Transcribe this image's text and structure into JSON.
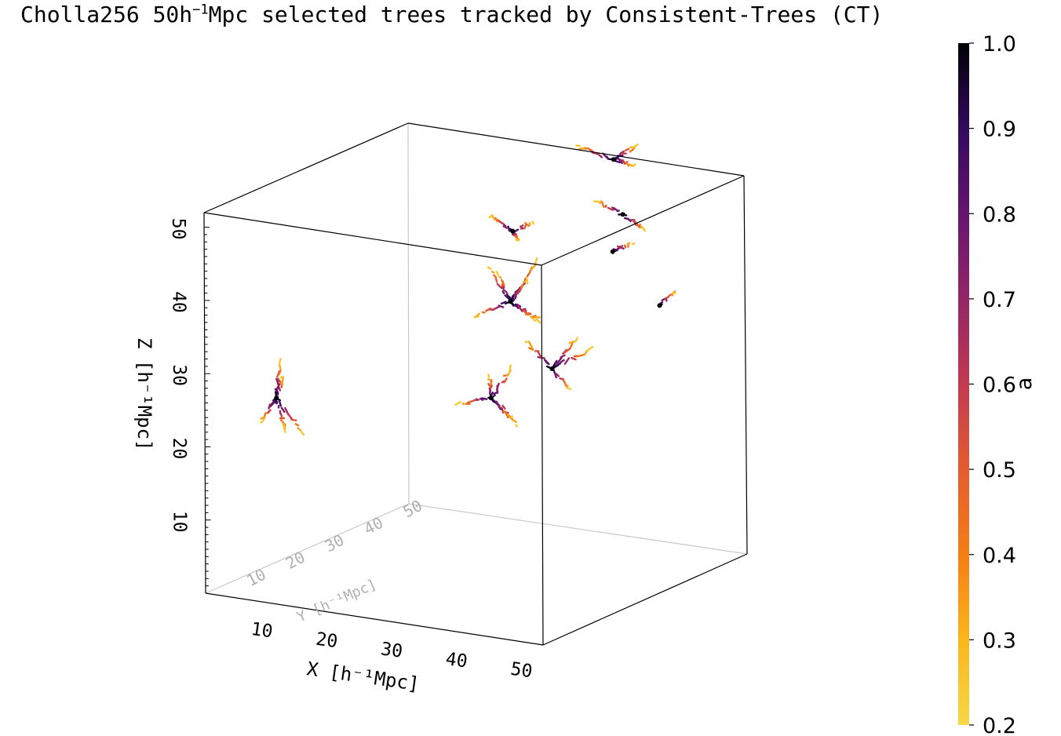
{
  "chart_data": {
    "type": "scatter",
    "projection": "3d",
    "title_parts": {
      "before": "Cholla256 50h",
      "sup": "−1",
      "after": "Mpc selected trees tracked by Consistent-Trees (CT)"
    },
    "axes": {
      "x": {
        "label": "X [h⁻¹Mpc]",
        "range": [
          0,
          52
        ],
        "ticks": [
          "10",
          "20",
          "30",
          "40",
          "50"
        ]
      },
      "y": {
        "label": "Y [h⁻¹Mpc]",
        "range": [
          0,
          52
        ],
        "ticks": [
          "10",
          "20",
          "30",
          "40",
          "50"
        ]
      },
      "z": {
        "label": "Z [h⁻¹Mpc]",
        "range": [
          0,
          52
        ],
        "ticks": [
          "10",
          "20",
          "30",
          "40",
          "50"
        ]
      }
    },
    "colorbar": {
      "label": "a",
      "range": [
        0.2,
        1.0
      ],
      "ticks": [
        "0.2",
        "0.3",
        "0.4",
        "0.5",
        "0.6",
        "0.7",
        "0.8",
        "0.9",
        "1.0"
      ],
      "colormap": "inferno_r"
    },
    "grid": false,
    "trees": [
      {
        "root": [
          5,
          10,
          25
        ],
        "branches": [
          [
            2,
            -1,
            -4
          ],
          [
            3,
            2,
            -5
          ],
          [
            -3,
            1,
            -4
          ],
          [
            1,
            0,
            3
          ],
          [
            0,
            1,
            5
          ]
        ]
      },
      {
        "root": [
          20,
          45,
          32
        ],
        "branches": [
          [
            -4,
            -3,
            -2
          ],
          [
            -3,
            2,
            3
          ],
          [
            2,
            4,
            5
          ],
          [
            4,
            -2,
            4
          ],
          [
            3,
            3,
            -3
          ],
          [
            -2,
            -2,
            5
          ],
          [
            4,
            0,
            -2
          ]
        ]
      },
      {
        "root": [
          21,
          44,
          42
        ],
        "branches": [
          [
            -3,
            -1,
            2
          ],
          [
            2,
            2,
            1
          ],
          [
            -1,
            3,
            -2
          ]
        ]
      },
      {
        "root": [
          20,
          40,
          20
        ],
        "branches": [
          [
            -4,
            -2,
            -1
          ],
          [
            3,
            2,
            -4
          ],
          [
            4,
            -1,
            -2
          ],
          [
            -2,
            3,
            2
          ],
          [
            2,
            2,
            4
          ]
        ]
      },
      {
        "root": [
          27,
          44,
          24
        ],
        "branches": [
          [
            5,
            2,
            3
          ],
          [
            4,
            -2,
            -2
          ],
          [
            -3,
            -2,
            4
          ],
          [
            2,
            3,
            4
          ]
        ]
      },
      {
        "root": [
          35,
          49,
          45
        ],
        "branches": [
          [
            -3,
            -2,
            2
          ],
          [
            3,
            1,
            -2
          ]
        ]
      },
      {
        "root": [
          33,
          50,
          52
        ],
        "branches": [
          [
            -4,
            -3,
            2
          ],
          [
            2,
            2,
            -1
          ],
          [
            3,
            1,
            2
          ]
        ]
      },
      {
        "root": [
          40,
          50,
          33
        ],
        "branches": [
          [
            2,
            1,
            2
          ]
        ]
      },
      {
        "root": [
          34,
          48,
          40
        ],
        "branches": [
          [
            2,
            2,
            1
          ]
        ]
      }
    ]
  }
}
